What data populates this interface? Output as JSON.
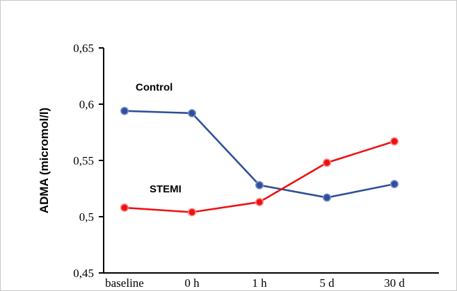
{
  "chart_data": {
    "type": "line",
    "title": "",
    "xlabel": "",
    "ylabel": "ADMA (micromol/l)",
    "categories": [
      "baseline",
      "0 h",
      "1 h",
      "5 d",
      "30 d"
    ],
    "ylim": [
      0.45,
      0.65
    ],
    "yticks": [
      {
        "value": 0.45,
        "label": "0,45"
      },
      {
        "value": 0.5,
        "label": "0,5"
      },
      {
        "value": 0.55,
        "label": "0,55"
      },
      {
        "value": 0.6,
        "label": "0,6"
      },
      {
        "value": 0.65,
        "label": "0,65"
      }
    ],
    "grid": false,
    "series": [
      {
        "name": "Control",
        "color": "#2f4f9c",
        "values": [
          0.594,
          0.592,
          0.528,
          0.517,
          0.529
        ]
      },
      {
        "name": "STEMI",
        "color": "#ee1111",
        "values": [
          0.508,
          0.504,
          0.513,
          0.548,
          0.567
        ]
      }
    ]
  }
}
